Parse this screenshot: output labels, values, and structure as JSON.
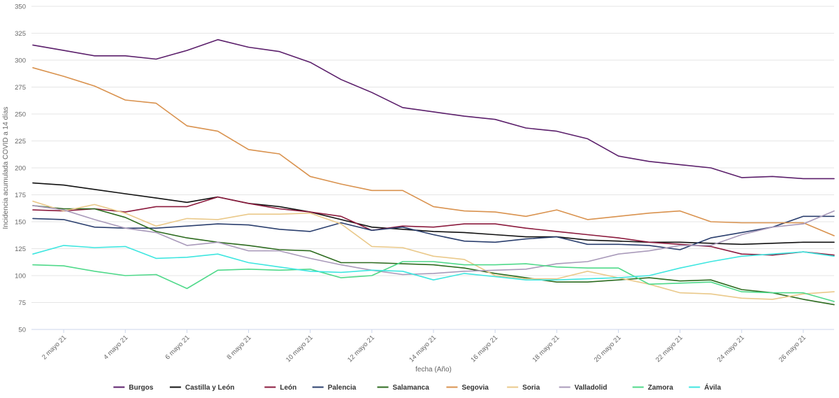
{
  "chart_data": {
    "type": "line",
    "title": "",
    "xlabel": "fecha (Año)",
    "ylabel": "Incidencia acumulada COVID a 14 días",
    "ylim": [
      50,
      350
    ],
    "yticks": [
      50,
      75,
      100,
      125,
      150,
      175,
      200,
      225,
      250,
      275,
      300,
      325,
      350
    ],
    "x": [
      "1 mayo 21",
      "2 mayo 21",
      "3 mayo 21",
      "4 mayo 21",
      "5 mayo 21",
      "6 mayo 21",
      "7 mayo 21",
      "8 mayo 21",
      "9 mayo 21",
      "10 mayo 21",
      "11 mayo 21",
      "12 mayo 21",
      "13 mayo 21",
      "14 mayo 21",
      "15 mayo 21",
      "16 mayo 21",
      "17 mayo 21",
      "18 mayo 21",
      "19 mayo 21",
      "20 mayo 21",
      "21 mayo 21",
      "22 mayo 21",
      "23 mayo 21",
      "24 mayo 21",
      "25 mayo 21",
      "26 mayo 21",
      "27 mayo 21"
    ],
    "xtick_labels": [
      "2 mayo 21",
      "4 mayo 21",
      "6 mayo 21",
      "8 mayo 21",
      "10 mayo 21",
      "12 mayo 21",
      "14 mayo 21",
      "16 mayo 21",
      "18 mayo 21",
      "20 mayo 21",
      "22 mayo 21",
      "24 mayo 21",
      "26 mayo 21"
    ],
    "grid": true,
    "legend_position": "bottom",
    "series": [
      {
        "name": "Burgos",
        "color": "#5b1f6b",
        "values": [
          314,
          309,
          304,
          304,
          301,
          309,
          319,
          312,
          308,
          298,
          282,
          270,
          256,
          252,
          248,
          245,
          237,
          234,
          227,
          211,
          206,
          203,
          200,
          191,
          192,
          190,
          190
        ]
      },
      {
        "name": "Castilla y León",
        "color": "#111111",
        "values": [
          186,
          184,
          180,
          176,
          172,
          168,
          173,
          167,
          164,
          159,
          152,
          145,
          143,
          141,
          140,
          138,
          136,
          136,
          133,
          132,
          131,
          131,
          130,
          129,
          130,
          131,
          131
        ]
      },
      {
        "name": "León",
        "color": "#8b1a3d",
        "values": [
          161,
          160,
          162,
          159,
          164,
          164,
          173,
          167,
          162,
          159,
          155,
          142,
          146,
          145,
          148,
          148,
          144,
          141,
          138,
          135,
          131,
          129,
          127,
          120,
          119,
          122,
          119
        ]
      },
      {
        "name": "Palencia",
        "color": "#2b3f6e",
        "values": [
          153,
          152,
          145,
          144,
          144,
          146,
          148,
          147,
          143,
          141,
          149,
          142,
          145,
          138,
          132,
          131,
          134,
          136,
          129,
          129,
          128,
          124,
          135,
          140,
          145,
          155,
          155
        ]
      },
      {
        "name": "Salamanca",
        "color": "#2d6b1f",
        "values": [
          165,
          162,
          162,
          154,
          141,
          135,
          131,
          128,
          124,
          123,
          112,
          112,
          111,
          110,
          107,
          102,
          98,
          94,
          94,
          96,
          98,
          95,
          96,
          87,
          84,
          78,
          73
        ]
      },
      {
        "name": "Segovia",
        "color": "#d9924e",
        "values": [
          293,
          285,
          276,
          263,
          260,
          239,
          234,
          217,
          213,
          192,
          185,
          179,
          179,
          164,
          160,
          159,
          155,
          161,
          152,
          155,
          158,
          160,
          150,
          149,
          149,
          149,
          137
        ]
      },
      {
        "name": "Soria",
        "color": "#eac98a",
        "values": [
          169,
          160,
          166,
          158,
          146,
          153,
          152,
          157,
          157,
          158,
          148,
          127,
          126,
          118,
          115,
          100,
          97,
          97,
          104,
          98,
          92,
          84,
          83,
          79,
          78,
          83,
          85
        ]
      },
      {
        "name": "Valladolid",
        "color": "#a99aba",
        "values": [
          165,
          161,
          152,
          144,
          140,
          128,
          131,
          123,
          123,
          116,
          110,
          105,
          101,
          102,
          104,
          105,
          106,
          111,
          113,
          120,
          123,
          128,
          128,
          138,
          145,
          148,
          160
        ]
      },
      {
        "name": "Zamora",
        "color": "#4fd98a",
        "values": [
          110,
          109,
          104,
          100,
          101,
          88,
          105,
          106,
          105,
          106,
          98,
          100,
          113,
          113,
          110,
          110,
          111,
          108,
          107,
          107,
          92,
          93,
          94,
          85,
          84,
          84,
          76
        ]
      },
      {
        "name": "Ávila",
        "color": "#3ee6e0",
        "values": [
          120,
          128,
          126,
          127,
          116,
          117,
          120,
          112,
          108,
          104,
          103,
          105,
          104,
          96,
          102,
          99,
          96,
          96,
          97,
          98,
          100,
          107,
          113,
          118,
          120,
          122,
          118
        ]
      }
    ]
  }
}
